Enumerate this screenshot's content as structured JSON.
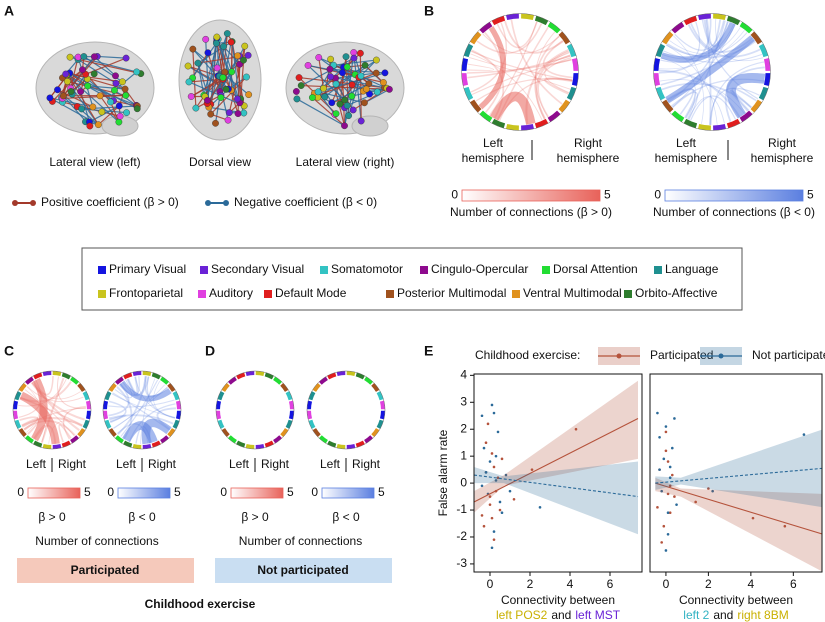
{
  "panel_labels": {
    "a": "A",
    "b": "B",
    "c": "C",
    "d": "D",
    "e": "E"
  },
  "panel_a": {
    "views": [
      "Lateral view (left)",
      "Dorsal view",
      "Lateral view (right)"
    ],
    "legend": [
      {
        "label": "Positive coefficient (β > 0)",
        "color": "#a3392a"
      },
      {
        "label": "Negative coefficient (β < 0)",
        "color": "#2b6a99"
      }
    ]
  },
  "panel_b": {
    "left": "Left hemisphere",
    "right": "Right hemisphere",
    "colorbars": [
      {
        "ticks": [
          0,
          5
        ],
        "label": "Number of connections (β > 0)",
        "color": "#e8625a",
        "text_color": "#a3392a"
      },
      {
        "ticks": [
          0,
          5
        ],
        "label": "Number of connections (β < 0)",
        "color": "#5b7fe0",
        "text_color": "#2b6a99"
      }
    ]
  },
  "networks": [
    {
      "name": "Primary Visual",
      "color": "#1414e0"
    },
    {
      "name": "Secondary Visual",
      "color": "#6a22d6"
    },
    {
      "name": "Somatomotor",
      "color": "#33c3c3"
    },
    {
      "name": "Cingulo-Opercular",
      "color": "#8e0a8e"
    },
    {
      "name": "Dorsal Attention",
      "color": "#22dd33"
    },
    {
      "name": "Language",
      "color": "#1f9090"
    },
    {
      "name": "Frontoparietal",
      "color": "#c9c41e"
    },
    {
      "name": "Auditory",
      "color": "#e040e0"
    },
    {
      "name": "Default Mode",
      "color": "#e01e1e"
    },
    {
      "name": "Posterior Multimodal",
      "color": "#a0521e"
    },
    {
      "name": "Ventral Multimodal",
      "color": "#e0921e"
    },
    {
      "name": "Orbito-Affective",
      "color": "#2e7d2e"
    }
  ],
  "panels_cd": {
    "left": "Left",
    "right": "Right",
    "colorbar_ticks": [
      0,
      5
    ],
    "pos": "β > 0",
    "neg": "β < 0",
    "caption": "Number of connections",
    "groups": [
      "Participated",
      "Not participated"
    ],
    "title": "Childhood exercise"
  },
  "panel_e": {
    "legend_title": "Childhood exercise:"
  },
  "chart_data": [
    {
      "type": "scatter",
      "ylabel": "False alarm rate",
      "xlabel": "Connectivity between",
      "xlabel_parts": [
        {
          "text": "left POS2",
          "color": "#c9b000"
        },
        {
          "text": "and",
          "color": "#111111"
        },
        {
          "text": "left MST",
          "color": "#6a22d6"
        }
      ],
      "xlim": [
        -0.8,
        7.6
      ],
      "ylim": [
        -3.3,
        4.05
      ],
      "xticks": [
        0,
        2,
        4,
        6
      ],
      "yticks": [
        -3,
        -2,
        -1,
        0,
        1,
        2,
        3,
        4
      ],
      "series": [
        {
          "name": "Participated",
          "color": "#b5533c",
          "dashed": false,
          "x": [
            -0.4,
            -0.2,
            0,
            0.1,
            0.3,
            -0.3,
            0.2,
            0.5,
            -0.1,
            0.4,
            0,
            0.2,
            1.2,
            2.1,
            -0.2,
            0.1,
            4.3,
            0.6
          ],
          "y": [
            -1.2,
            0.4,
            -0.8,
            1.1,
            -0.3,
            -1.6,
            0.6,
            -1.0,
            2.2,
            0.2,
            -0.5,
            -2.1,
            -0.6,
            0.5,
            1.5,
            -1.3,
            2.0,
            0.9
          ],
          "fit": {
            "x": [
              -0.8,
              7.4
            ],
            "y": [
              -0.7,
              2.4
            ]
          },
          "band": {
            "x": [
              -0.8,
              0.7,
              7.4
            ],
            "lower": [
              -1.1,
              -0.1,
              0.9
            ],
            "upper": [
              -0.3,
              0.3,
              3.8
            ]
          }
        },
        {
          "name": "Not participated",
          "color": "#2b6a99",
          "dashed": true,
          "x": [
            -0.4,
            -0.3,
            -0.1,
            0,
            0.1,
            0.2,
            0.3,
            0.4,
            0.6,
            1.0,
            -0.2,
            0.1,
            0.3,
            2.5,
            0.2,
            0.5,
            -0.4,
            0.8
          ],
          "y": [
            2.5,
            1.3,
            -0.4,
            0.8,
            2.9,
            -1.8,
            0.1,
            1.9,
            -1.1,
            -0.3,
            0.4,
            -2.4,
            1.0,
            -0.9,
            2.6,
            -0.7,
            -0.1,
            0.3
          ],
          "fit": {
            "x": [
              -0.8,
              7.4
            ],
            "y": [
              0.3,
              -0.5
            ]
          },
          "band": {
            "x": [
              -0.8,
              0.7,
              7.4
            ],
            "lower": [
              0.0,
              0.0,
              -1.9
            ],
            "upper": [
              0.6,
              0.25,
              0.8
            ]
          }
        }
      ]
    },
    {
      "type": "scatter",
      "xlabel": "Connectivity between",
      "xlabel_parts": [
        {
          "text": "left 2",
          "color": "#33b3c3"
        },
        {
          "text": "and",
          "color": "#111111"
        },
        {
          "text": "right 8BM",
          "color": "#c9b000"
        }
      ],
      "xlim": [
        -0.75,
        7.35
      ],
      "ylim": [
        -3.3,
        4.05
      ],
      "xticks": [
        0,
        2,
        4,
        6
      ],
      "series": [
        {
          "name": "Participated",
          "color": "#b5533c",
          "dashed": false,
          "x": [
            -0.4,
            -0.3,
            -0.1,
            0,
            0.1,
            0.2,
            0.3,
            1.4,
            2.0,
            -0.2,
            0.1,
            4.1,
            5.6,
            0.4,
            0,
            0.2
          ],
          "y": [
            -0.9,
            0.5,
            -1.6,
            1.2,
            -0.4,
            -1.1,
            0.3,
            -0.7,
            -0.2,
            -2.2,
            0.8,
            -1.3,
            -1.6,
            -0.5,
            1.9,
            -0.1
          ],
          "fit": {
            "x": [
              -0.5,
              7.4
            ],
            "y": [
              0.0,
              -1.9
            ]
          },
          "band": {
            "x": [
              -0.5,
              0.7,
              7.4
            ],
            "lower": [
              -0.3,
              -0.5,
              -3.3
            ],
            "upper": [
              0.2,
              -0.2,
              -0.4
            ]
          }
        },
        {
          "name": "Not participated",
          "color": "#2b6a99",
          "dashed": true,
          "x": [
            -0.4,
            -0.3,
            -0.2,
            -0.1,
            0,
            0.1,
            0.2,
            0.3,
            0.5,
            2.2,
            -0.3,
            0.1,
            0.4,
            6.5,
            0,
            0.2
          ],
          "y": [
            2.6,
            1.7,
            -0.3,
            0.9,
            2.1,
            -1.9,
            0.2,
            1.3,
            -0.8,
            -0.3,
            0.5,
            -1.1,
            2.4,
            1.8,
            -2.5,
            0.6
          ],
          "fit": {
            "x": [
              -0.5,
              7.4
            ],
            "y": [
              0.0,
              0.55
            ]
          },
          "band": {
            "x": [
              -0.5,
              0.7,
              7.4
            ],
            "lower": [
              -0.25,
              -0.05,
              -0.9
            ],
            "upper": [
              0.25,
              0.2,
              2.0
            ]
          }
        }
      ]
    }
  ]
}
